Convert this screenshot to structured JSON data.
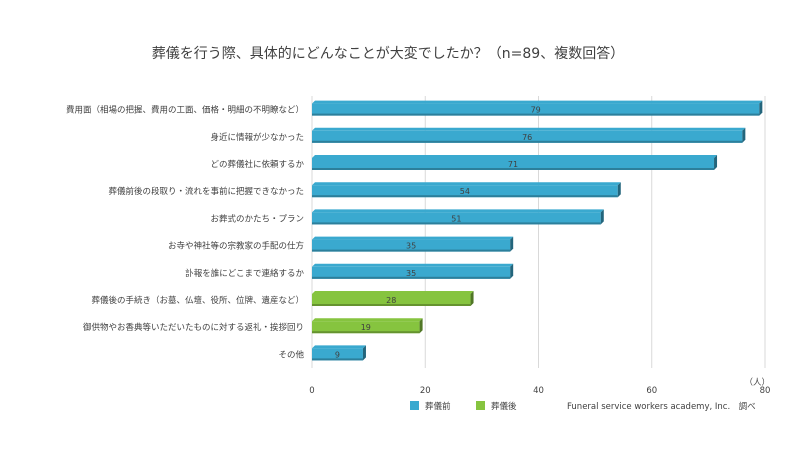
{
  "chart_data": {
    "type": "bar",
    "orientation": "horizontal",
    "title": "葬儀を行う際、具体的にどんなことが大変でしたか？（n=89、複数回答）",
    "categories": [
      "費用面（相場の把握、費用の工面、価格・明細の不明瞭など）",
      "身近に情報が少なかった",
      "どの葬儀社に依頼するか",
      "葬儀前後の段取り・流れを事前に把握できなかった",
      "お葬式のかたち・プラン",
      "お寺や神社等の宗教家の手配の仕方",
      "訃報を誰にどこまで連絡するか",
      "葬儀後の手続き（お墓、仏壇、役所、位牌、遺産など）",
      "御供物やお香典等いただいたものに対する返礼・挨拶回り",
      "その他"
    ],
    "values": [
      79,
      76,
      71,
      54,
      51,
      35,
      35,
      28,
      19,
      9
    ],
    "groups": [
      "葬儀前",
      "葬儀前",
      "葬儀前",
      "葬儀前",
      "葬儀前",
      "葬儀前",
      "葬儀前",
      "葬儀後",
      "葬儀後",
      "葬儀前"
    ],
    "legend": [
      {
        "name": "葬儀前",
        "color": "#3aa9cf"
      },
      {
        "name": "葬儀後",
        "color": "#86c43f"
      }
    ],
    "xlim": [
      0,
      80
    ],
    "xticks": [
      0,
      20,
      40,
      60,
      80
    ],
    "unit_label": "（人）",
    "grid": true,
    "legend_position": "bottom",
    "source_note": "Funeral service workers academy, Inc.　調べ"
  }
}
